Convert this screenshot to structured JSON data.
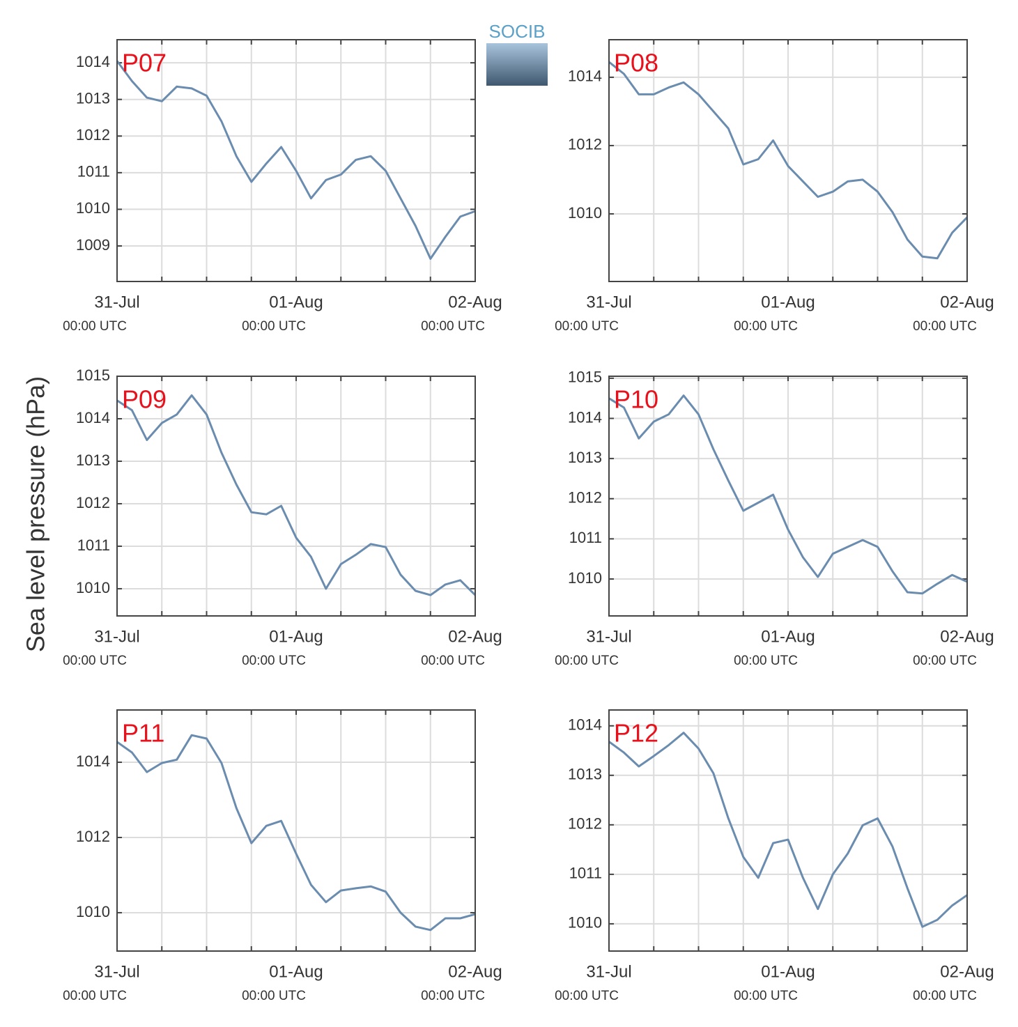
{
  "ylabel": "Sea level pressure (hPa)",
  "logo": "SOCIB",
  "chart_data": [
    {
      "type": "line",
      "title": "P07",
      "color": "#6a8caf",
      "x": [
        0,
        2,
        4,
        6,
        8,
        10,
        12,
        14,
        16,
        18,
        20,
        22,
        24,
        26,
        28,
        30,
        32,
        34,
        36,
        38,
        40,
        42,
        44,
        46,
        48
      ],
      "values": [
        1014.05,
        1013.5,
        1013.05,
        1012.95,
        1013.35,
        1013.3,
        1013.1,
        1012.4,
        1011.45,
        1010.75,
        1011.25,
        1011.7,
        1011.05,
        1010.3,
        1010.8,
        1010.95,
        1011.35,
        1011.45,
        1011.05,
        1010.3,
        1009.55,
        1008.65,
        1009.25,
        1009.8,
        1009.95
      ],
      "xlim": [
        0,
        48
      ],
      "ylim": [
        1008.03,
        1014.63
      ],
      "yticks": [
        1009,
        1010,
        1011,
        1012,
        1013,
        1014
      ],
      "xticks": [
        {
          "value": 0,
          "label": "31-Jul",
          "sublabel": "00:00 UTC"
        },
        {
          "value": 6,
          "label": null
        },
        {
          "value": 12,
          "label": null
        },
        {
          "value": 18,
          "label": null
        },
        {
          "value": 24,
          "label": "01-Aug",
          "sublabel": "00:00 UTC"
        },
        {
          "value": 30,
          "label": null
        },
        {
          "value": 36,
          "label": null
        },
        {
          "value": 42,
          "label": null
        },
        {
          "value": 48,
          "label": "02-Aug",
          "sublabel": "00:00 UTC"
        }
      ],
      "grid": true
    },
    {
      "type": "line",
      "title": "P08",
      "color": "#6a8caf",
      "x": [
        0,
        2,
        4,
        6,
        8,
        10,
        12,
        14,
        16,
        18,
        20,
        22,
        24,
        26,
        28,
        30,
        32,
        34,
        36,
        38,
        40,
        42,
        44,
        46,
        48
      ],
      "values": [
        1014.45,
        1014.1,
        1013.5,
        1013.5,
        1013.7,
        1013.85,
        1013.5,
        1013.0,
        1012.5,
        1011.45,
        1011.6,
        1012.15,
        1011.4,
        1010.95,
        1010.5,
        1010.65,
        1010.95,
        1011.0,
        1010.65,
        1010.05,
        1009.25,
        1008.75,
        1008.7,
        1009.45,
        1009.9
      ],
      "xlim": [
        0,
        48
      ],
      "ylim": [
        1008.02,
        1015.1
      ],
      "yticks": [
        1010,
        1012,
        1014
      ],
      "xticks": [
        {
          "value": 0,
          "label": "31-Jul",
          "sublabel": "00:00 UTC"
        },
        {
          "value": 6,
          "label": null
        },
        {
          "value": 12,
          "label": null
        },
        {
          "value": 18,
          "label": null
        },
        {
          "value": 24,
          "label": "01-Aug",
          "sublabel": "00:00 UTC"
        },
        {
          "value": 30,
          "label": null
        },
        {
          "value": 36,
          "label": null
        },
        {
          "value": 42,
          "label": null
        },
        {
          "value": 48,
          "label": "02-Aug",
          "sublabel": "00:00 UTC"
        }
      ],
      "grid": true
    },
    {
      "type": "line",
      "title": "P09",
      "color": "#6a8caf",
      "x": [
        0,
        2,
        4,
        6,
        8,
        10,
        12,
        14,
        16,
        18,
        20,
        22,
        24,
        26,
        28,
        30,
        32,
        34,
        36,
        38,
        40,
        42,
        44,
        46,
        48
      ],
      "values": [
        1014.43,
        1014.2,
        1013.5,
        1013.9,
        1014.1,
        1014.55,
        1014.1,
        1013.2,
        1012.45,
        1011.8,
        1011.75,
        1011.95,
        1011.2,
        1010.75,
        1010.0,
        1010.58,
        1010.8,
        1011.05,
        1010.98,
        1010.33,
        1009.95,
        1009.85,
        1010.1,
        1010.2,
        1009.85
      ],
      "xlim": [
        0,
        48
      ],
      "ylim": [
        1009.36,
        1015
      ],
      "yticks": [
        1010,
        1011,
        1012,
        1013,
        1014,
        1015
      ],
      "xticks": [
        {
          "value": 0,
          "label": "31-Jul",
          "sublabel": "00:00 UTC"
        },
        {
          "value": 6,
          "label": null
        },
        {
          "value": 12,
          "label": null
        },
        {
          "value": 18,
          "label": null
        },
        {
          "value": 24,
          "label": "01-Aug",
          "sublabel": "00:00 UTC"
        },
        {
          "value": 30,
          "label": null
        },
        {
          "value": 36,
          "label": null
        },
        {
          "value": 42,
          "label": null
        },
        {
          "value": 48,
          "label": "02-Aug",
          "sublabel": "00:00 UTC"
        }
      ],
      "grid": true
    },
    {
      "type": "line",
      "title": "P10",
      "color": "#6a8caf",
      "x": [
        0,
        2,
        4,
        6,
        8,
        10,
        12,
        14,
        16,
        18,
        20,
        22,
        24,
        26,
        28,
        30,
        32,
        34,
        36,
        38,
        40,
        42,
        44,
        46,
        48
      ],
      "values": [
        1014.5,
        1014.27,
        1013.5,
        1013.92,
        1014.1,
        1014.57,
        1014.1,
        1013.23,
        1012.45,
        1011.7,
        1011.9,
        1012.1,
        1011.23,
        1010.54,
        1010.05,
        1010.63,
        1010.8,
        1010.97,
        1010.8,
        1010.19,
        1009.67,
        1009.64,
        1009.88,
        1010.1,
        1009.93
      ],
      "xlim": [
        0,
        48
      ],
      "ylim": [
        1009.08,
        1015.05
      ],
      "yticks": [
        1010,
        1011,
        1012,
        1013,
        1014,
        1015
      ],
      "xticks": [
        {
          "value": 0,
          "label": "31-Jul",
          "sublabel": "00:00 UTC"
        },
        {
          "value": 6,
          "label": null
        },
        {
          "value": 12,
          "label": null
        },
        {
          "value": 18,
          "label": null
        },
        {
          "value": 24,
          "label": "01-Aug",
          "sublabel": "00:00 UTC"
        },
        {
          "value": 30,
          "label": null
        },
        {
          "value": 36,
          "label": null
        },
        {
          "value": 42,
          "label": null
        },
        {
          "value": 48,
          "label": "02-Aug",
          "sublabel": "00:00 UTC"
        }
      ],
      "grid": true
    },
    {
      "type": "line",
      "title": "P11",
      "color": "#6a8caf",
      "x": [
        0,
        2,
        4,
        6,
        8,
        10,
        12,
        14,
        16,
        18,
        20,
        22,
        24,
        26,
        28,
        30,
        32,
        34,
        36,
        38,
        40,
        42,
        44,
        46,
        48
      ],
      "values": [
        1014.54,
        1014.26,
        1013.74,
        1013.98,
        1014.07,
        1014.72,
        1014.63,
        1013.98,
        1012.78,
        1011.85,
        1012.31,
        1012.44,
        1011.57,
        1010.74,
        1010.28,
        1010.59,
        1010.65,
        1010.7,
        1010.56,
        1010.0,
        1009.63,
        1009.54,
        1009.85,
        1009.85,
        1009.96
      ],
      "xlim": [
        0,
        48
      ],
      "ylim": [
        1008.98,
        1015.39
      ],
      "yticks": [
        1010,
        1012,
        1014
      ],
      "xticks": [
        {
          "value": 0,
          "label": "31-Jul",
          "sublabel": "00:00 UTC"
        },
        {
          "value": 6,
          "label": null
        },
        {
          "value": 12,
          "label": null
        },
        {
          "value": 18,
          "label": null
        },
        {
          "value": 24,
          "label": "01-Aug",
          "sublabel": "00:00 UTC"
        },
        {
          "value": 30,
          "label": null
        },
        {
          "value": 36,
          "label": null
        },
        {
          "value": 42,
          "label": null
        },
        {
          "value": 48,
          "label": "02-Aug",
          "sublabel": "00:00 UTC"
        }
      ],
      "grid": true
    },
    {
      "type": "line",
      "title": "P12",
      "color": "#6a8caf",
      "x": [
        0,
        2,
        4,
        6,
        8,
        10,
        12,
        14,
        16,
        18,
        20,
        22,
        24,
        26,
        28,
        30,
        32,
        34,
        36,
        38,
        40,
        42,
        44,
        46,
        48
      ],
      "values": [
        1013.68,
        1013.46,
        1013.18,
        1013.39,
        1013.61,
        1013.86,
        1013.54,
        1013.04,
        1012.13,
        1011.35,
        1010.93,
        1011.63,
        1011.7,
        1010.93,
        1010.3,
        1011.0,
        1011.42,
        1011.99,
        1012.13,
        1011.56,
        1010.72,
        1009.94,
        1010.08,
        1010.37,
        1010.58
      ],
      "xlim": [
        0,
        48
      ],
      "ylim": [
        1009.45,
        1014.32
      ],
      "yticks": [
        1010,
        1011,
        1012,
        1013,
        1014
      ],
      "xticks": [
        {
          "value": 0,
          "label": "31-Jul",
          "sublabel": "00:00 UTC"
        },
        {
          "value": 6,
          "label": null
        },
        {
          "value": 12,
          "label": null
        },
        {
          "value": 18,
          "label": null
        },
        {
          "value": 24,
          "label": "01-Aug",
          "sublabel": "00:00 UTC"
        },
        {
          "value": 30,
          "label": null
        },
        {
          "value": 36,
          "label": null
        },
        {
          "value": 42,
          "label": null
        },
        {
          "value": 48,
          "label": "02-Aug",
          "sublabel": "00:00 UTC"
        }
      ],
      "grid": true
    }
  ]
}
